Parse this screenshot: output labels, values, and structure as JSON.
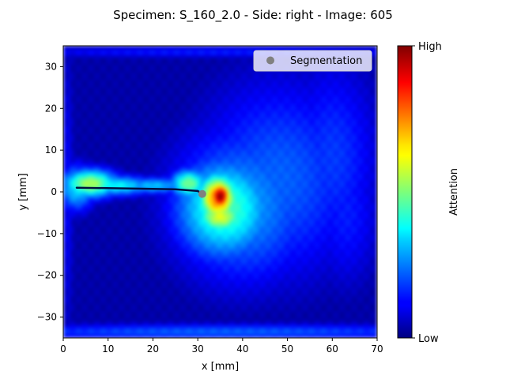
{
  "chart_data": {
    "type": "heatmap",
    "title": "Specimen: S_160_2.0 - Side: right - Image: 605",
    "xlabel": "x [mm]",
    "ylabel": "y [mm]",
    "xlim": [
      0,
      70
    ],
    "ylim": [
      -35,
      35
    ],
    "xticks": [
      0,
      10,
      20,
      30,
      40,
      50,
      60,
      70
    ],
    "yticks": [
      -30,
      -20,
      -10,
      0,
      10,
      20,
      30
    ],
    "colormap": "jet",
    "grid": false,
    "colorbar": {
      "label": "Attention",
      "max_label": "High",
      "min_label": "Low"
    },
    "legend": {
      "position": "top-right",
      "entries": [
        {
          "label": "Segmentation",
          "color": "#808080",
          "marker": "circle"
        }
      ]
    },
    "segmentation_points": [
      {
        "x": 31,
        "y": -0.5
      }
    ],
    "crack_path": [
      [
        3,
        1
      ],
      [
        15,
        0.8
      ],
      [
        25,
        0.6
      ],
      [
        30,
        0.2
      ],
      [
        31,
        -0.5
      ]
    ],
    "attention_blobs": [
      {
        "x": 35,
        "y": -1,
        "sx": 1.8,
        "sy": 2.5,
        "value": 1.0
      },
      {
        "x": 34.5,
        "y": -1.5,
        "sx": 3.2,
        "sy": 4.2,
        "value": 0.78
      },
      {
        "x": 35,
        "y": -6,
        "sx": 4,
        "sy": 3,
        "value": 0.6
      },
      {
        "x": 36,
        "y": -4,
        "sx": 8,
        "sy": 9,
        "value": 0.45
      },
      {
        "x": 40,
        "y": -3,
        "sx": 12,
        "sy": 14,
        "value": 0.28
      },
      {
        "x": 48,
        "y": 3,
        "sx": 14,
        "sy": 18,
        "value": 0.22
      },
      {
        "x": 60,
        "y": 8,
        "sx": 8,
        "sy": 18,
        "value": 0.18
      },
      {
        "x": 63,
        "y": -5,
        "sx": 6,
        "sy": 14,
        "value": 0.15
      },
      {
        "x": 6,
        "y": 2,
        "sx": 4.5,
        "sy": 2.5,
        "value": 0.55
      },
      {
        "x": 3,
        "y": 1,
        "sx": 3,
        "sy": 4,
        "value": 0.35
      },
      {
        "x": 12,
        "y": 1.5,
        "sx": 6,
        "sy": 1.8,
        "value": 0.38
      },
      {
        "x": 20,
        "y": 1.5,
        "sx": 6,
        "sy": 1.5,
        "value": 0.32
      },
      {
        "x": 28,
        "y": 2,
        "sx": 3,
        "sy": 2.5,
        "value": 0.5
      },
      {
        "x": 35,
        "y": -33.5,
        "sx": 45,
        "sy": 1.4,
        "value": 0.22
      },
      {
        "x": 35,
        "y": 33.5,
        "sx": 45,
        "sy": 1.0,
        "value": 0.15
      },
      {
        "x": 1,
        "y": 0,
        "sx": 1,
        "sy": 30,
        "value": 0.12
      }
    ]
  }
}
